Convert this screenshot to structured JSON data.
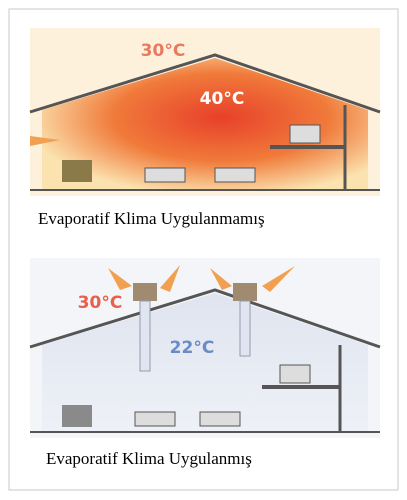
{
  "panels": [
    {
      "labels": [
        "30°C",
        "40°C"
      ],
      "caption": "Evaporatif Klima Uygulanmamış"
    },
    {
      "labels": [
        "30°C",
        "22°C"
      ],
      "caption": "Evaporatif Klima Uygulanmış"
    }
  ]
}
